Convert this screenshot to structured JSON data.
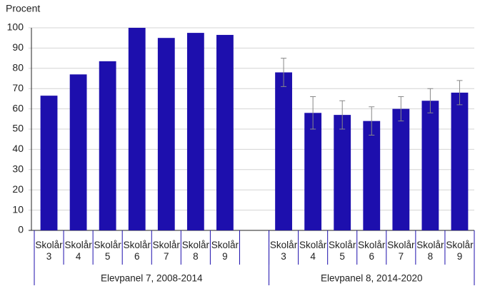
{
  "chart_data": {
    "type": "bar",
    "y_axis_title": "Procent",
    "color": "#1d0fad",
    "error_color": "#888888",
    "ylim": [
      0,
      100
    ],
    "yticks": [
      0,
      10,
      20,
      30,
      40,
      50,
      60,
      70,
      80,
      90,
      100
    ],
    "grid": true,
    "groups": [
      {
        "name": "Elevpanel 7, 2008-2014",
        "categories": [
          "Skolår\n3",
          "Skolår\n4",
          "Skolår\n5",
          "Skolår\n6",
          "Skolår\n7",
          "Skolår\n8",
          "Skolår\n9"
        ],
        "values": [
          66.5,
          77,
          83.5,
          100,
          95,
          97.5,
          96.5
        ]
      },
      {
        "name": "Elevpanel 8, 2014-2020",
        "categories": [
          "Skolår\n3",
          "Skolår\n4",
          "Skolår\n5",
          "Skolår\n6",
          "Skolår\n7",
          "Skolår\n8",
          "Skolår\n9"
        ],
        "values": [
          78,
          58,
          57,
          54,
          60,
          64,
          68
        ],
        "errors": [
          7,
          8,
          7,
          7,
          6,
          6,
          6
        ]
      }
    ]
  }
}
